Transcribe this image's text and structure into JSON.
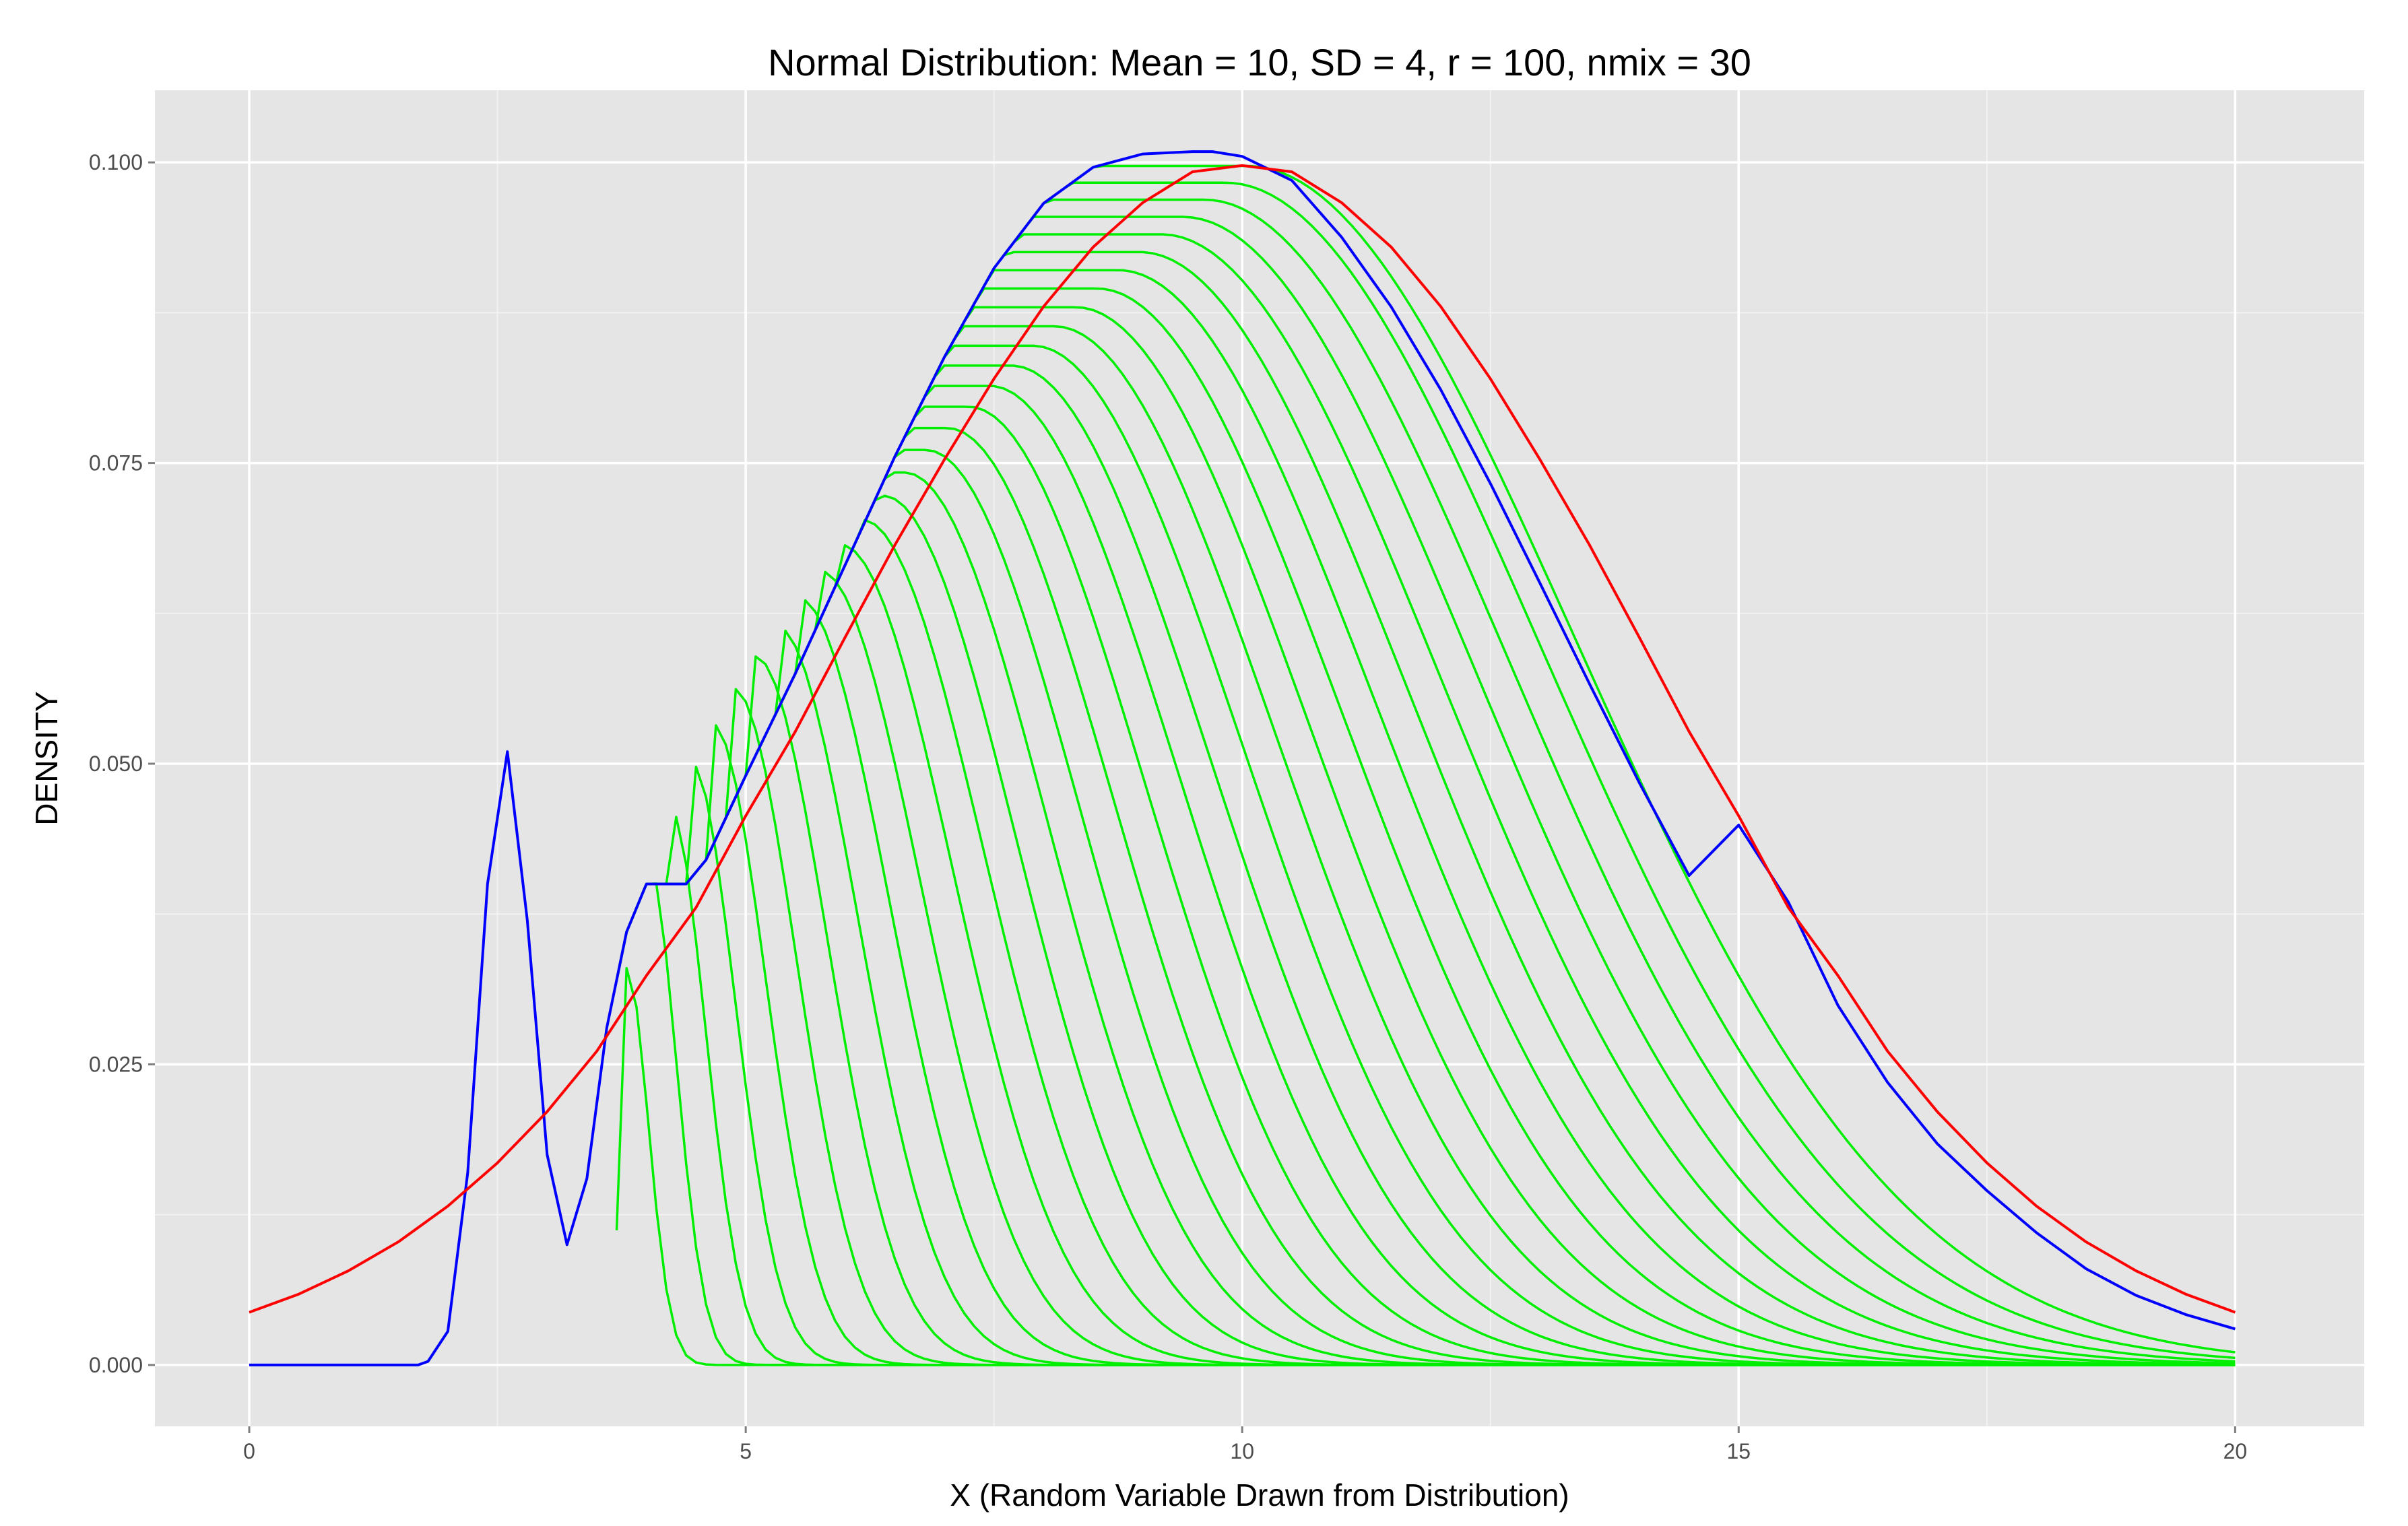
{
  "chart_data": {
    "type": "line",
    "title": "Normal Distribution: Mean = 10, SD = 4, r = 100, nmix = 30",
    "xlabel": "X (Random Variable Drawn from Distribution)",
    "ylabel": "DENSITY",
    "xlim": [
      -0.95,
      21.3
    ],
    "ylim": [
      -0.0051,
      0.106
    ],
    "x_ticks": [
      0,
      5,
      10,
      15,
      20
    ],
    "x_tick_labels": [
      "0",
      "5",
      "10",
      "15",
      "20"
    ],
    "y_ticks": [
      0,
      0.025,
      0.05,
      0.075,
      0.1
    ],
    "y_tick_labels": [
      "0.000",
      "0.025",
      "0.050",
      "0.075",
      "0.100"
    ],
    "grid": true,
    "background_color": "#e5e5e5",
    "colors": {
      "mixture_total": "#0000ff",
      "components": "#00ee00",
      "normal_reference": "#ff0000"
    },
    "normal_reference": {
      "mean": 10,
      "sd": 4,
      "x": [
        0,
        0.5,
        1,
        1.5,
        2,
        2.5,
        3,
        3.5,
        4,
        4.5,
        5,
        5.5,
        6,
        6.5,
        7,
        7.5,
        8,
        8.5,
        9,
        9.5,
        10,
        10.5,
        11,
        11.5,
        12,
        12.5,
        13,
        13.5,
        14,
        14.5,
        15,
        15.5,
        16,
        16.5,
        17,
        17.5,
        18,
        18.5,
        19,
        19.5,
        20
      ],
      "y": [
        0.00438,
        0.0059,
        0.00784,
        0.01023,
        0.01321,
        0.01681,
        0.02107,
        0.02609,
        0.03238,
        0.03804,
        0.04566,
        0.05268,
        0.06049,
        0.06815,
        0.07528,
        0.08201,
        0.08802,
        0.09297,
        0.09666,
        0.09922,
        0.09974,
        0.09922,
        0.09666,
        0.09297,
        0.08802,
        0.08201,
        0.07528,
        0.06815,
        0.06049,
        0.05268,
        0.04566,
        0.03804,
        0.03238,
        0.02609,
        0.02107,
        0.01681,
        0.01321,
        0.01023,
        0.00784,
        0.0059,
        0.00438
      ]
    },
    "mixture_total": {
      "x": [
        0,
        1.7,
        1.8,
        2,
        2.2,
        2.4,
        2.6,
        2.8,
        3,
        3.2,
        3.4,
        3.6,
        3.8,
        4,
        4.4,
        4.6,
        5,
        5.5,
        6,
        6.5,
        7,
        7.5,
        8,
        8.5,
        9,
        9.5,
        9.7,
        10,
        10.5,
        11,
        11.5,
        12,
        12.5,
        13,
        13.5,
        14,
        14.5,
        15,
        15.5,
        16,
        16.5,
        17,
        17.5,
        18,
        18.5,
        19,
        19.5,
        20
      ],
      "y": [
        0,
        0,
        0.0003,
        0.0028,
        0.016,
        0.04,
        0.051,
        0.037,
        0.0175,
        0.01,
        0.0155,
        0.028,
        0.036,
        0.04,
        0.04,
        0.042,
        0.049,
        0.0575,
        0.0665,
        0.0755,
        0.0838,
        0.0912,
        0.0966,
        0.0996,
        0.1007,
        0.1009,
        0.1009,
        0.1005,
        0.0985,
        0.0938,
        0.088,
        0.0811,
        0.0733,
        0.065,
        0.0566,
        0.0484,
        0.0407,
        0.0449,
        0.0385,
        0.0299,
        0.0235,
        0.0184,
        0.0145,
        0.011,
        0.008,
        0.0058,
        0.0042,
        0.003
      ]
    },
    "components": {
      "count": 30,
      "first_peak": {
        "x": 3.8,
        "y": 0.033
      },
      "first_peak_sd": 0.22,
      "last_peak": {
        "x": 10.05,
        "y": 0.0997
      },
      "last_peak_sd": 3.3
    }
  }
}
